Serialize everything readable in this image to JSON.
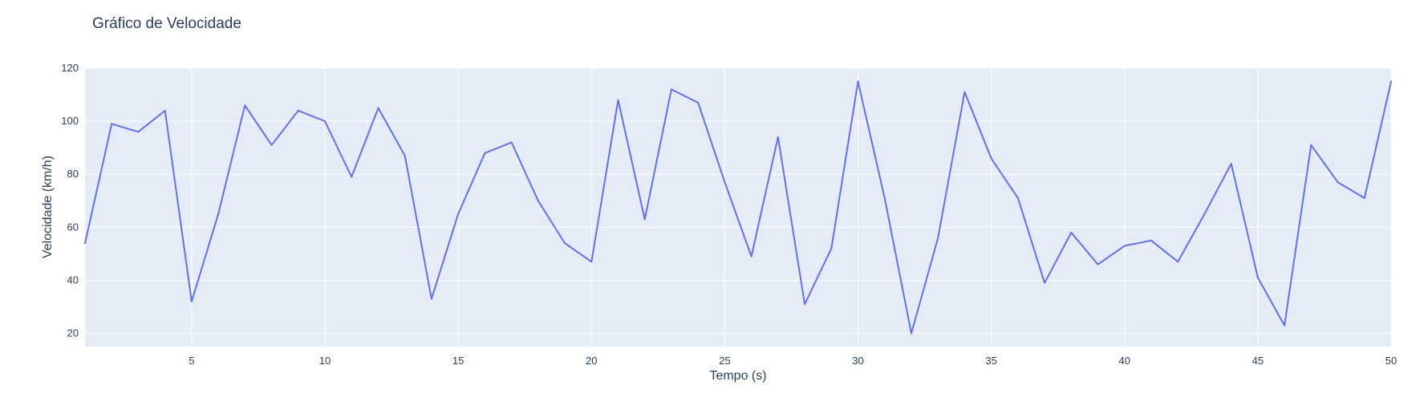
{
  "chart_data": {
    "type": "line",
    "title": "Gráfico de Velocidade",
    "xlabel": "Tempo (s)",
    "ylabel": "Velocidade (km/h)",
    "xlim": [
      1,
      50
    ],
    "ylim": [
      15,
      120
    ],
    "x_ticks": [
      5,
      10,
      15,
      20,
      25,
      30,
      35,
      40,
      45,
      50
    ],
    "y_ticks": [
      20,
      40,
      60,
      80,
      100,
      120
    ],
    "grid": true,
    "colors": {
      "line": "#636efa",
      "plot_bg": "#e5ecf6",
      "grid": "#ffffff",
      "text": "#2a3f5f"
    },
    "series": [
      {
        "x": [
          1,
          2,
          3,
          4,
          5,
          6,
          7,
          8,
          9,
          10,
          11,
          12,
          13,
          14,
          15,
          16,
          17,
          18,
          19,
          20,
          21,
          22,
          23,
          24,
          25,
          26,
          27,
          28,
          29,
          30,
          31,
          32,
          33,
          34,
          35,
          36,
          37,
          38,
          39,
          40,
          41,
          42,
          43,
          44,
          45,
          46,
          47,
          48,
          49,
          50
        ],
        "y": [
          54,
          99,
          96,
          104,
          32,
          65,
          106,
          91,
          104,
          100,
          79,
          105,
          87,
          33,
          65,
          88,
          92,
          70,
          54,
          47,
          108,
          63,
          112,
          107,
          77,
          49,
          94,
          31,
          52,
          115,
          71,
          20,
          56,
          111,
          86,
          71,
          39,
          58,
          46,
          53,
          55,
          47,
          65,
          84,
          41,
          23,
          91,
          77,
          71,
          115
        ]
      }
    ]
  }
}
